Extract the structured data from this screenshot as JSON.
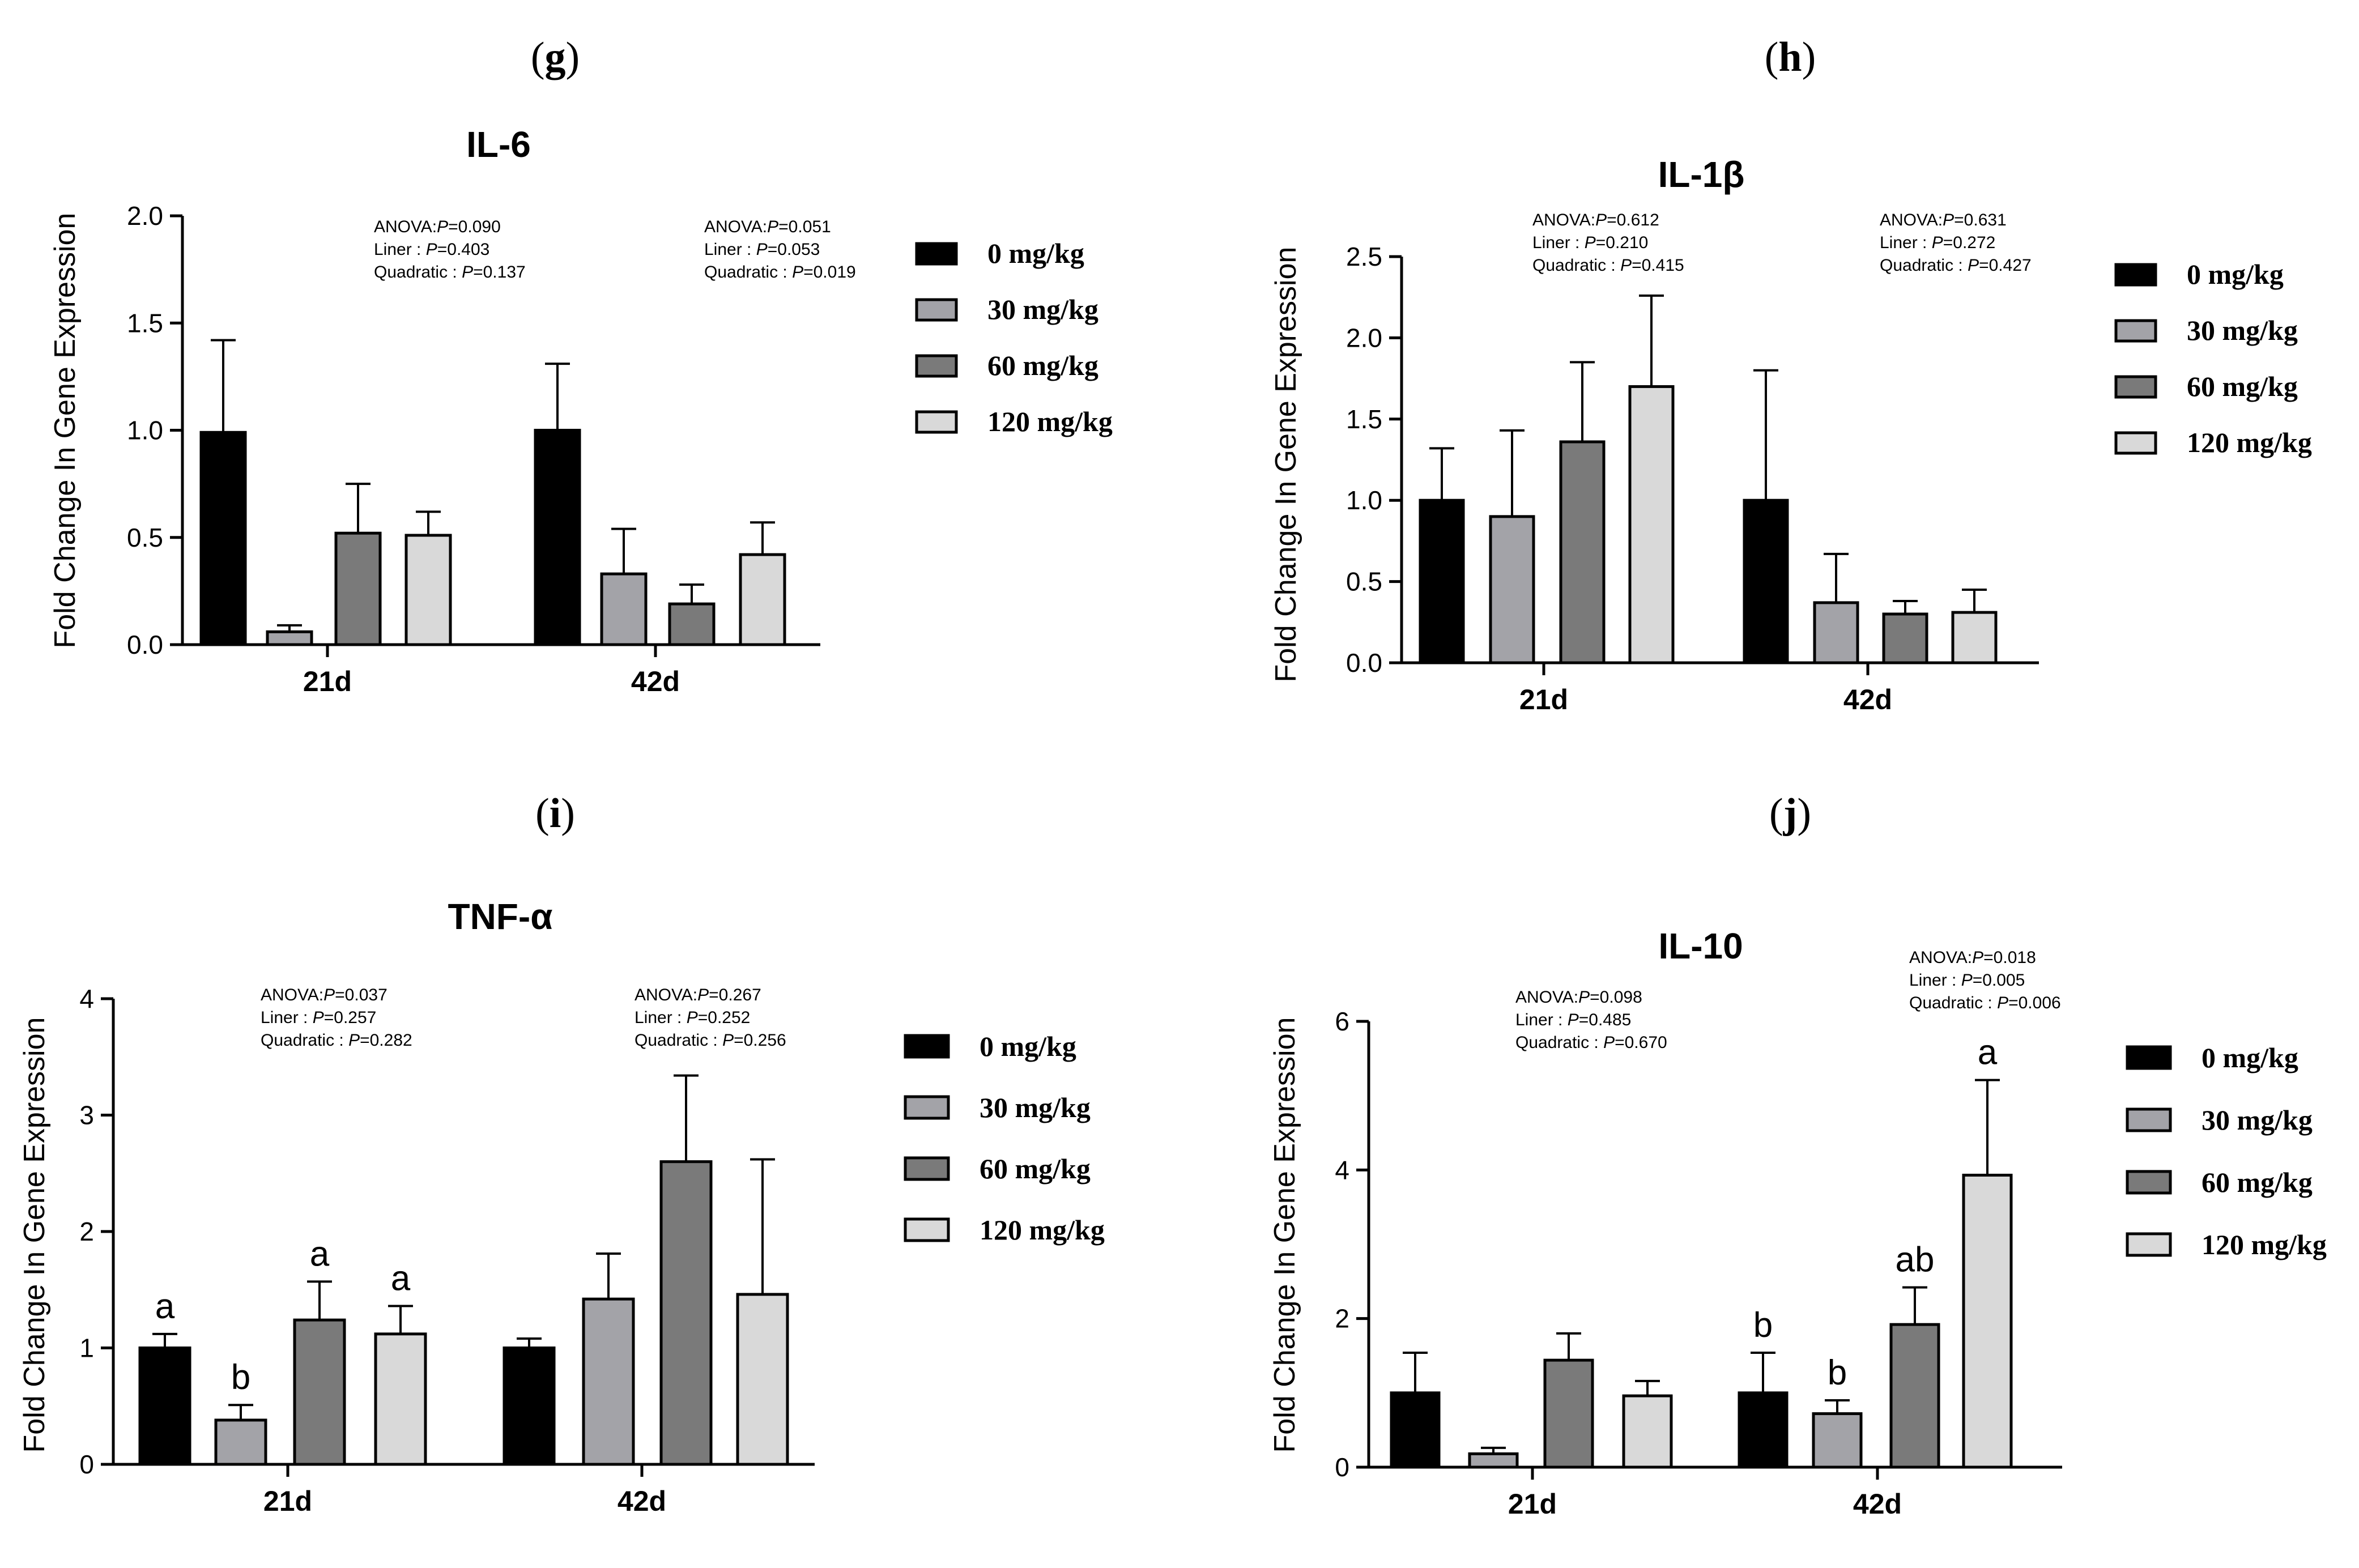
{
  "colors": {
    "series": [
      "#000000",
      "#a3a3a8",
      "#7a7a7a",
      "#d9d9d9"
    ],
    "axis": "#000000"
  },
  "chart_data": [
    {
      "panel": "(g)",
      "type": "bar",
      "title": "IL-6",
      "ylabel": "Fold Change In Gene Expression",
      "xlabel": "",
      "ylim": [
        0,
        2.0
      ],
      "yticks": [
        "0.0",
        "0.5",
        "1.0",
        "1.5",
        "2.0"
      ],
      "categories": [
        "21d",
        "42d"
      ],
      "series": [
        {
          "name": "0 mg/kg",
          "values": [
            0.99,
            1.0
          ],
          "errors": [
            0.43,
            0.31
          ]
        },
        {
          "name": "30 mg/kg",
          "values": [
            0.06,
            0.33
          ],
          "errors": [
            0.03,
            0.21
          ]
        },
        {
          "name": "60 mg/kg",
          "values": [
            0.52,
            0.19
          ],
          "errors": [
            0.23,
            0.09
          ]
        },
        {
          "name": "120 mg/kg",
          "values": [
            0.51,
            0.42
          ],
          "errors": [
            0.11,
            0.15
          ]
        }
      ],
      "sig_letters": [
        [
          "",
          "",
          "",
          ""
        ],
        [
          "",
          "",
          "",
          ""
        ]
      ],
      "stats": [
        {
          "anova": "ANOVA:P=0.090",
          "liner": "Liner : P=0.403",
          "quadratic": "Quadratic : P=0.137"
        },
        {
          "anova": "ANOVA:P=0.051",
          "liner": "Liner : P=0.053",
          "quadratic": "Quadratic : P=0.019"
        }
      ],
      "legend": [
        "0 mg/kg",
        "30 mg/kg",
        "60 mg/kg",
        "120 mg/kg"
      ]
    },
    {
      "panel": "(h)",
      "type": "bar",
      "title": "IL-1β",
      "ylabel": "Fold Change In Gene Expression",
      "xlabel": "",
      "ylim": [
        0,
        2.5
      ],
      "yticks": [
        "0.0",
        "0.5",
        "1.0",
        "1.5",
        "2.0",
        "2.5"
      ],
      "categories": [
        "21d",
        "42d"
      ],
      "series": [
        {
          "name": "0 mg/kg",
          "values": [
            1.0,
            1.0
          ],
          "errors": [
            0.32,
            0.8
          ]
        },
        {
          "name": "30 mg/kg",
          "values": [
            0.9,
            0.37
          ],
          "errors": [
            0.53,
            0.3
          ]
        },
        {
          "name": "60 mg/kg",
          "values": [
            1.36,
            0.3
          ],
          "errors": [
            0.49,
            0.08
          ]
        },
        {
          "name": "120 mg/kg",
          "values": [
            1.7,
            0.31
          ],
          "errors": [
            0.56,
            0.14
          ]
        }
      ],
      "sig_letters": [
        [
          "",
          "",
          "",
          ""
        ],
        [
          "",
          "",
          "",
          ""
        ]
      ],
      "stats": [
        {
          "anova": "ANOVA:P=0.612",
          "liner": "Liner : P=0.210",
          "quadratic": "Quadratic : P=0.415"
        },
        {
          "anova": "ANOVA:P=0.631",
          "liner": "Liner : P=0.272",
          "quadratic": "Quadratic : P=0.427"
        }
      ],
      "legend": [
        "0 mg/kg",
        "30 mg/kg",
        "60 mg/kg",
        "120 mg/kg"
      ]
    },
    {
      "panel": "(i)",
      "type": "bar",
      "title": "TNF-α",
      "ylabel": "Fold Change In Gene Expression",
      "xlabel": "",
      "ylim": [
        0,
        4
      ],
      "yticks": [
        "0",
        "1",
        "2",
        "3",
        "4"
      ],
      "categories": [
        "21d",
        "42d"
      ],
      "series": [
        {
          "name": "0 mg/kg",
          "values": [
            1.0,
            1.0
          ],
          "errors": [
            0.12,
            0.08
          ]
        },
        {
          "name": "30 mg/kg",
          "values": [
            0.38,
            1.42
          ],
          "errors": [
            0.13,
            0.39
          ]
        },
        {
          "name": "60 mg/kg",
          "values": [
            1.24,
            2.6
          ],
          "errors": [
            0.33,
            0.74
          ]
        },
        {
          "name": "120 mg/kg",
          "values": [
            1.12,
            1.46
          ],
          "errors": [
            0.24,
            1.16
          ]
        }
      ],
      "sig_letters": [
        [
          "a",
          "b",
          "a",
          "a"
        ],
        [
          "",
          "",
          "",
          ""
        ]
      ],
      "stats": [
        {
          "anova": "ANOVA:P=0.037",
          "liner": "Liner : P=0.257",
          "quadratic": "Quadratic : P=0.282"
        },
        {
          "anova": "ANOVA:P=0.267",
          "liner": "Liner : P=0.252",
          "quadratic": "Quadratic : P=0.256"
        }
      ],
      "legend": [
        "0 mg/kg",
        "30 mg/kg",
        "60 mg/kg",
        "120 mg/kg"
      ]
    },
    {
      "panel": "(j)",
      "type": "bar",
      "title": "IL-10",
      "ylabel": "Fold Change In Gene Expression",
      "xlabel": "",
      "ylim": [
        0,
        6
      ],
      "yticks": [
        "0",
        "2",
        "4",
        "6"
      ],
      "categories": [
        "21d",
        "42d"
      ],
      "series": [
        {
          "name": "0 mg/kg",
          "values": [
            1.0,
            1.0
          ],
          "errors": [
            0.54,
            0.54
          ]
        },
        {
          "name": "30 mg/kg",
          "values": [
            0.18,
            0.72
          ],
          "errors": [
            0.08,
            0.18
          ]
        },
        {
          "name": "60 mg/kg",
          "values": [
            1.44,
            1.92
          ],
          "errors": [
            0.36,
            0.5
          ]
        },
        {
          "name": "120 mg/kg",
          "values": [
            0.96,
            3.93
          ],
          "errors": [
            0.2,
            1.28
          ]
        }
      ],
      "sig_letters": [
        [
          "",
          "",
          "",
          ""
        ],
        [
          "b",
          "b",
          "ab",
          "a"
        ]
      ],
      "stats": [
        {
          "anova": "ANOVA:P=0.098",
          "liner": "Liner : P=0.485",
          "quadratic": "Quadratic : P=0.670"
        },
        {
          "anova": "ANOVA:P=0.018",
          "liner": "Liner : P=0.005",
          "quadratic": "Quadratic : P=0.006"
        }
      ],
      "legend": [
        "0 mg/kg",
        "30 mg/kg",
        "60 mg/kg",
        "120 mg/kg"
      ]
    }
  ]
}
